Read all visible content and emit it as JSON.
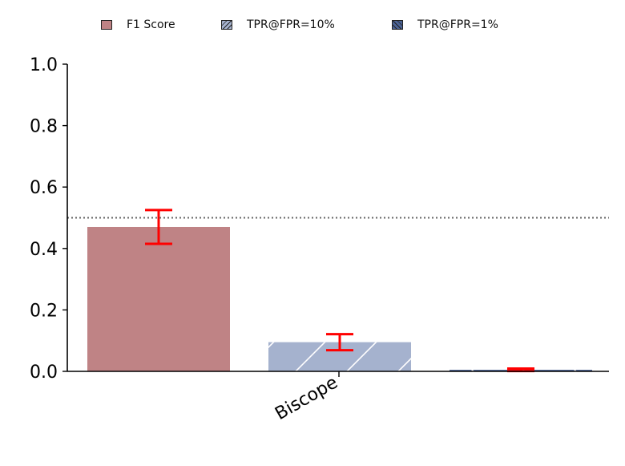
{
  "chart_data": {
    "type": "bar",
    "categories": [
      "Biscope"
    ],
    "series": [
      {
        "name": "F1 Score",
        "values": [
          0.47
        ],
        "error": [
          0.055
        ],
        "color": "#bf8385",
        "hatch": "none"
      },
      {
        "name": "TPR@FPR=10%",
        "values": [
          0.095
        ],
        "error": [
          0.026
        ],
        "color": "#a5b2ce",
        "hatch": "/"
      },
      {
        "name": "TPR@FPR=1%",
        "values": [
          0.005
        ],
        "error": [
          0.004
        ],
        "color": "#4a6295",
        "hatch": "\\"
      }
    ],
    "reference_line": {
      "y": 0.5,
      "style": "dotted",
      "color": "#666666"
    },
    "error_bar_color": "#ff0000",
    "ylim": [
      0,
      1.0
    ],
    "yticks": [
      "0.0",
      "0.2",
      "0.4",
      "0.6",
      "0.8",
      "1.0"
    ],
    "xlabel": "",
    "ylabel": "",
    "title": "",
    "legend_position": "top-center",
    "grid": false
  }
}
